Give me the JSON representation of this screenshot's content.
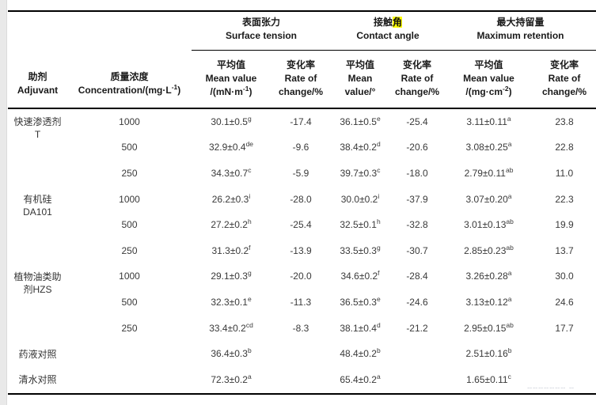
{
  "colors": {
    "background": "#ffffff",
    "rule": "#000000",
    "text": "#3a3a3a",
    "header_text": "#1a1a1a",
    "search_highlight": "#ffff00",
    "page_edge_strip": "#e9e9e9"
  },
  "table": {
    "header": {
      "adjuvant_zh": "助剂",
      "adjuvant_en": "Adjuvant",
      "conc_zh": "质量浓度",
      "conc_en": "Concentration/(mg·L^{-1})",
      "groups": [
        {
          "zh": "表面张力",
          "en": "Surface tension",
          "mean_lines": [
            "平均值",
            "Mean value",
            "/(mN·m^{-1})"
          ],
          "rate_lines": [
            "变化率",
            "Rate of",
            "change/%"
          ]
        },
        {
          "zh": "接触~{角}",
          "en": "Contact angle",
          "mean_lines": [
            "平均值",
            "Mean",
            "value/°"
          ],
          "rate_lines": [
            "变化率",
            "Rate of",
            "change/%"
          ]
        },
        {
          "zh": "最大持留量",
          "en": "Maximum retention",
          "mean_lines": [
            "平均值",
            "Mean value",
            "/(mg·cm^{-2})"
          ],
          "rate_lines": [
            "变化率",
            "Rate of",
            "change/%"
          ]
        }
      ]
    },
    "rows": [
      {
        "adjuvant": [
          "快速渗透剂",
          "T"
        ],
        "span": 3,
        "conc": "1000",
        "cells": [
          "30.1±0.5^{g}",
          "-17.4",
          "36.1±0.5^{e}",
          "-25.4",
          "3.11±0.11^{a}",
          "23.8"
        ]
      },
      {
        "conc": "500",
        "cells": [
          "32.9±0.4^{de}",
          "-9.6",
          "38.4±0.2^{d}",
          "-20.6",
          "3.08±0.25^{a}",
          "22.8"
        ]
      },
      {
        "conc": "250",
        "cells": [
          "34.3±0.7^{c}",
          "-5.9",
          "39.7±0.3^{c}",
          "-18.0",
          "2.79±0.11^{ab}",
          "11.0"
        ]
      },
      {
        "adjuvant": [
          "有机硅",
          "DA101"
        ],
        "span": 3,
        "conc": "1000",
        "cells": [
          "26.2±0.3^{i}",
          "-28.0",
          "30.0±0.2^{i}",
          "-37.9",
          "3.07±0.20^{a}",
          "22.3"
        ]
      },
      {
        "conc": "500",
        "cells": [
          "27.2±0.2^{h}",
          "-25.4",
          "32.5±0.1^{h}",
          "-32.8",
          "3.01±0.13^{ab}",
          "19.9"
        ]
      },
      {
        "conc": "250",
        "cells": [
          "31.3±0.2^{f}",
          "-13.9",
          "33.5±0.3^{g}",
          "-30.7",
          "2.85±0.23^{ab}",
          "13.7"
        ]
      },
      {
        "adjuvant": [
          "植物油类助",
          "剂HZS"
        ],
        "span": 3,
        "conc": "1000",
        "cells": [
          "29.1±0.3^{g}",
          "-20.0",
          "34.6±0.2^{f}",
          "-28.4",
          "3.26±0.28^{a}",
          "30.0"
        ]
      },
      {
        "conc": "500",
        "cells": [
          "32.3±0.1^{e}",
          "-11.3",
          "36.5±0.3^{e}",
          "-24.6",
          "3.13±0.12^{a}",
          "24.6"
        ]
      },
      {
        "conc": "250",
        "cells": [
          "33.4±0.2^{cd}",
          "-8.3",
          "38.1±0.4^{d}",
          "-21.2",
          "2.95±0.15^{ab}",
          "17.7"
        ]
      },
      {
        "adjuvant": [
          "药液对照"
        ],
        "span": 1,
        "conc": "",
        "cells": [
          "36.4±0.3^{b}",
          "",
          "48.4±0.2^{b}",
          "",
          "2.51±0.16^{b}",
          ""
        ]
      },
      {
        "adjuvant": [
          "清水对照"
        ],
        "span": 1,
        "conc": "",
        "cells": [
          "72.3±0.2^{a}",
          "",
          "65.4±0.2^{a}",
          "",
          "1.65±0.11^{c}",
          ""
        ]
      }
    ],
    "cell_names": [
      "surface-tension-mean",
      "surface-tension-rate",
      "contact-angle-mean",
      "contact-angle-rate",
      "max-retention-mean",
      "max-retention-rate"
    ]
  },
  "watermark": {
    "text": "╌╌╌╌╌╌╌ ╌"
  }
}
